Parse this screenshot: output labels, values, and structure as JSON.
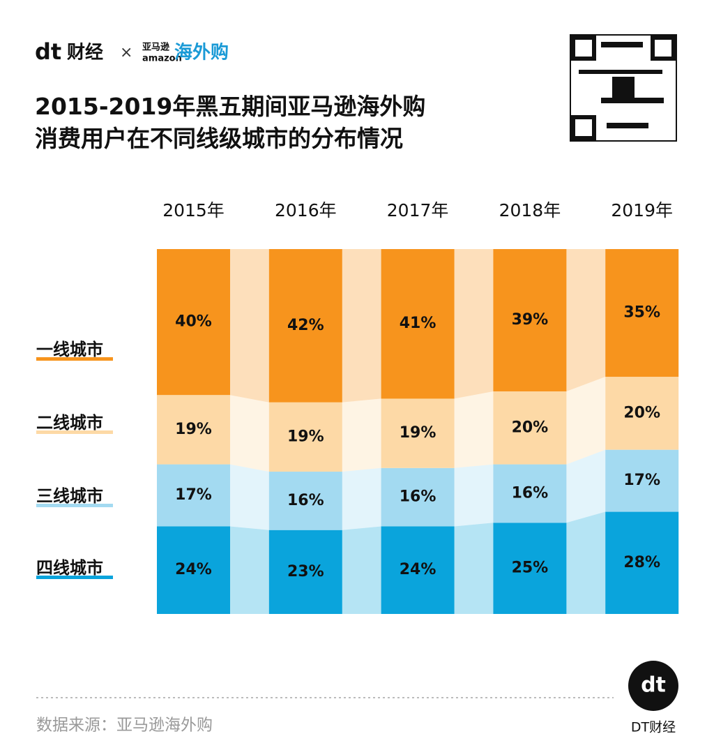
{
  "branding": {
    "logo": "dt",
    "logo_suffix": "财经",
    "cross": "×",
    "partner_cn": "亚马逊",
    "partner_en": "amazon",
    "partner_name": "海外购",
    "footer_mark": "dt",
    "footer": "DT财经"
  },
  "source": "数据来源：亚马逊海外购",
  "chart_data": {
    "type": "bar",
    "stacked": true,
    "title": "2015-2019年黑五期间亚马逊海外购\n消费用户在不同线级城市的分布情况",
    "categories": [
      "2015年",
      "2016年",
      "2017年",
      "2018年",
      "2019年"
    ],
    "ylim": [
      0,
      100
    ],
    "series": [
      {
        "name": "四线城市",
        "color": "#0aa4dc",
        "values": [
          24,
          23,
          24,
          25,
          28
        ],
        "value_labels": [
          "24%",
          "23%",
          "24%",
          "25%",
          "28%"
        ]
      },
      {
        "name": "三线城市",
        "color": "#a3daf1",
        "values": [
          17,
          16,
          16,
          16,
          17
        ],
        "value_labels": [
          "17%",
          "16%",
          "16%",
          "16%",
          "17%"
        ]
      },
      {
        "name": "二线城市",
        "color": "#fdd9a6",
        "values": [
          19,
          19,
          19,
          20,
          20
        ],
        "value_labels": [
          "19%",
          "19%",
          "19%",
          "20%",
          "20%"
        ]
      },
      {
        "name": "一线城市",
        "color": "#f7941d",
        "values": [
          40,
          42,
          41,
          39,
          35
        ],
        "value_labels": [
          "40%",
          "42%",
          "41%",
          "39%",
          "35%"
        ]
      }
    ]
  }
}
